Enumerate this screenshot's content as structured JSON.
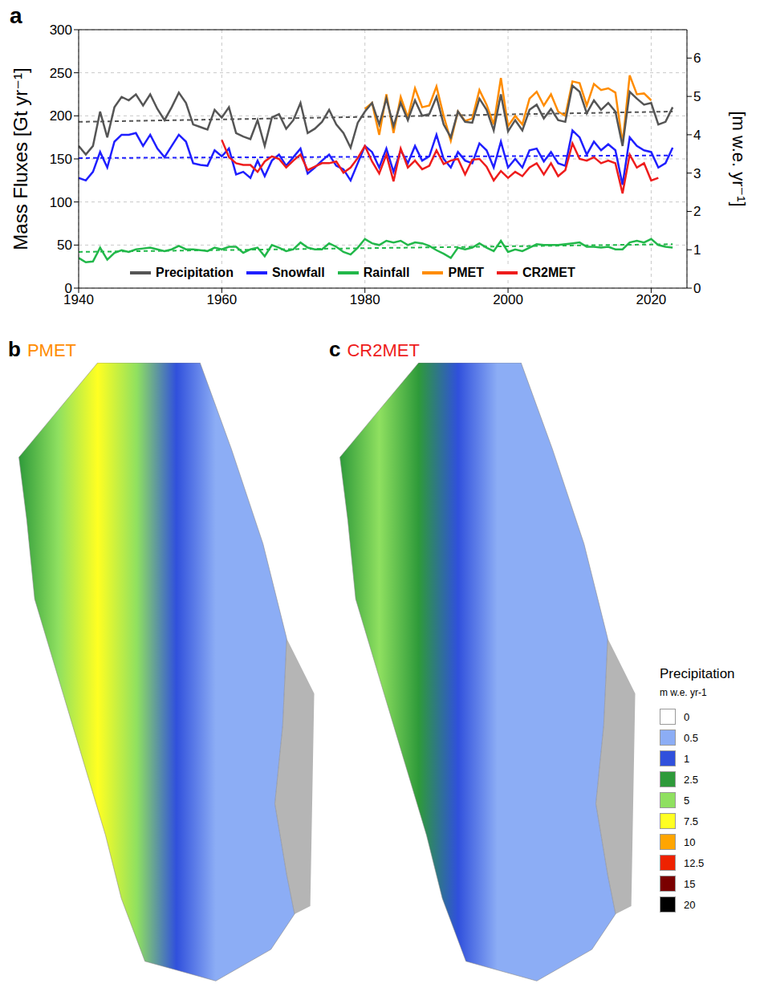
{
  "chart_data": [
    {
      "panel": "a",
      "type": "line",
      "xlim": [
        1940,
        2025
      ],
      "xticks": [
        1940,
        1960,
        1980,
        2000,
        2020
      ],
      "ylim": [
        0,
        300
      ],
      "yticks": [
        0,
        50,
        100,
        150,
        200,
        250,
        300
      ],
      "y2lim": [
        0,
        6.74
      ],
      "y2ticks": [
        0,
        1,
        2,
        3,
        4,
        5,
        6
      ],
      "y_label": "Mass Fluxes [Gt yr⁻¹]",
      "y2_label": "[m w.e. yr⁻¹]",
      "grid": true,
      "legend": "lower left",
      "x": [
        1940,
        1941,
        1942,
        1943,
        1944,
        1945,
        1946,
        1947,
        1948,
        1949,
        1950,
        1951,
        1952,
        1953,
        1954,
        1955,
        1956,
        1957,
        1958,
        1959,
        1960,
        1961,
        1962,
        1963,
        1964,
        1965,
        1966,
        1967,
        1968,
        1969,
        1970,
        1971,
        1972,
        1973,
        1974,
        1975,
        1976,
        1977,
        1978,
        1979,
        1980,
        1981,
        1982,
        1983,
        1984,
        1985,
        1986,
        1987,
        1988,
        1989,
        1990,
        1991,
        1992,
        1993,
        1994,
        1995,
        1996,
        1997,
        1998,
        1999,
        2000,
        2001,
        2002,
        2003,
        2004,
        2005,
        2006,
        2007,
        2008,
        2009,
        2010,
        2011,
        2012,
        2013,
        2014,
        2015,
        2016,
        2017,
        2018,
        2019,
        2020,
        2021,
        2022,
        2023
      ],
      "series": [
        {
          "name": "Rainfall",
          "color": "#22b84a",
          "trend": [
            42,
            51
          ],
          "values": [
            35,
            30,
            31,
            47,
            33,
            41,
            44,
            42,
            45,
            46,
            47,
            45,
            43,
            45,
            49,
            45,
            45,
            44,
            43,
            47,
            45,
            48,
            48,
            41,
            45,
            47,
            37,
            50,
            47,
            43,
            45,
            53,
            47,
            45,
            45,
            52,
            48,
            42,
            39,
            47,
            57,
            52,
            50,
            55,
            53,
            55,
            50,
            53,
            52,
            49,
            44,
            40,
            35,
            47,
            45,
            47,
            52,
            47,
            43,
            55,
            42,
            45,
            43,
            47,
            51,
            50,
            50,
            50,
            51,
            52,
            53,
            48,
            48,
            47,
            48,
            45,
            45,
            53,
            55,
            53,
            57,
            50,
            48,
            47
          ]
        },
        {
          "name": "Snowfall",
          "color": "#1f1fff",
          "trend": [
            151,
            154
          ],
          "values": [
            128,
            125,
            135,
            158,
            140,
            170,
            178,
            178,
            180,
            165,
            178,
            162,
            152,
            165,
            178,
            170,
            145,
            143,
            142,
            160,
            153,
            162,
            132,
            135,
            128,
            148,
            130,
            148,
            155,
            142,
            152,
            162,
            133,
            140,
            148,
            155,
            142,
            138,
            125,
            145,
            165,
            158,
            140,
            162,
            135,
            160,
            145,
            165,
            148,
            153,
            178,
            150,
            140,
            158,
            148,
            145,
            168,
            160,
            140,
            170,
            140,
            150,
            140,
            160,
            162,
            147,
            158,
            145,
            142,
            183,
            175,
            155,
            170,
            160,
            167,
            160,
            120,
            175,
            165,
            160,
            158,
            140,
            145,
            163
          ]
        },
        {
          "name": "CR2MET",
          "color": "#ee1c1c",
          "values": [
            null,
            null,
            null,
            null,
            null,
            null,
            null,
            null,
            null,
            null,
            null,
            null,
            null,
            null,
            null,
            null,
            null,
            null,
            null,
            null,
            172,
            152,
            145,
            143,
            143,
            135,
            147,
            153,
            150,
            140,
            148,
            155,
            137,
            141,
            145,
            145,
            147,
            134,
            140,
            151,
            165,
            147,
            133,
            155,
            124,
            162,
            140,
            148,
            138,
            142,
            160,
            144,
            148,
            150,
            132,
            149,
            150,
            141,
            125,
            136,
            128,
            135,
            130,
            140,
            145,
            132,
            145,
            130,
            137,
            168,
            150,
            148,
            152,
            145,
            148,
            145,
            110,
            155,
            140,
            145,
            125,
            128,
            null,
            null
          ]
        },
        {
          "name": "PMET",
          "color": "#ff8c00",
          "values": [
            null,
            null,
            null,
            null,
            null,
            null,
            null,
            null,
            null,
            null,
            null,
            null,
            null,
            null,
            null,
            null,
            null,
            null,
            null,
            null,
            null,
            null,
            null,
            null,
            null,
            null,
            null,
            null,
            null,
            null,
            null,
            null,
            null,
            null,
            null,
            null,
            null,
            null,
            null,
            null,
            208,
            215,
            178,
            225,
            180,
            222,
            198,
            232,
            210,
            212,
            234,
            200,
            171,
            205,
            194,
            197,
            230,
            213,
            190,
            244,
            188,
            200,
            190,
            220,
            228,
            212,
            225,
            205,
            200,
            240,
            238,
            212,
            237,
            230,
            232,
            227,
            168,
            247,
            225,
            226,
            218,
            null,
            null,
            null
          ]
        },
        {
          "name": "Precipitation",
          "color": "#555555",
          "trend": [
            193,
            205
          ],
          "values": [
            165,
            155,
            165,
            205,
            175,
            210,
            222,
            218,
            225,
            212,
            225,
            208,
            195,
            210,
            227,
            215,
            190,
            187,
            184,
            207,
            198,
            210,
            180,
            176,
            173,
            195,
            165,
            198,
            202,
            185,
            195,
            215,
            180,
            185,
            193,
            207,
            190,
            180,
            163,
            192,
            205,
            215,
            190,
            220,
            188,
            215,
            195,
            218,
            200,
            202,
            222,
            190,
            175,
            205,
            193,
            192,
            220,
            207,
            183,
            225,
            182,
            195,
            183,
            207,
            213,
            197,
            208,
            195,
            193,
            235,
            228,
            203,
            218,
            207,
            215,
            205,
            165,
            228,
            220,
            213,
            215,
            190,
            193,
            210
          ]
        }
      ],
      "legend_order": [
        "Precipitation",
        "Snowfall",
        "Rainfall",
        "PMET",
        "CR2MET"
      ]
    },
    {
      "panel": "b",
      "type": "map",
      "title": "PMET",
      "color": "#ff8c00",
      "precipitation_profile_west_to_east": [
        2.5,
        5,
        7.5,
        5,
        1,
        0.5,
        0.5,
        0.5
      ]
    },
    {
      "panel": "c",
      "type": "map",
      "title": "CR2MET",
      "color": "#ee1c1c",
      "precipitation_profile_west_to_east": [
        2.5,
        5,
        2.5,
        1,
        0.5,
        0.5,
        0.5,
        0.5
      ]
    }
  ],
  "colorbar": {
    "title": "Precipitation",
    "units": "m w.e. yr-1",
    "ticks": [
      0,
      0.5,
      1,
      2.5,
      5,
      7.5,
      10,
      12.5,
      15,
      20
    ],
    "colors": [
      "#ffffff",
      "#8cadf5",
      "#3050dc",
      "#2e9a3a",
      "#8fe060",
      "#ffff22",
      "#ffa500",
      "#ee2200",
      "#7a0000",
      "#000000"
    ]
  }
}
